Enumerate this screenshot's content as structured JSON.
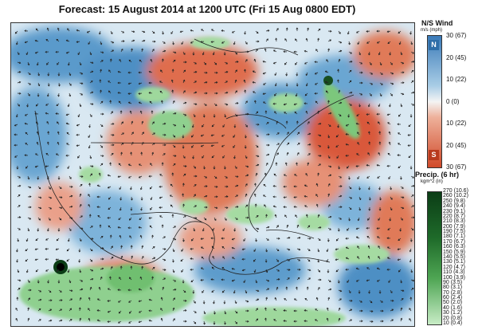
{
  "title": "Forecast: 15 August 2014 at 1200 UTC (Fri 15 Aug 0800 EDT)",
  "wind_legend": {
    "title": "N/S Wind",
    "units": "m/s (mph)",
    "north_label": "N",
    "south_label": "S",
    "ticks": [
      "30 (67)",
      "20 (45)",
      "10 (22)",
      "0 (0)",
      "10 (22)",
      "20 (45)",
      "30 (67)"
    ],
    "colors": {
      "north": "#3a7ab8",
      "mid": "#f4f4f4",
      "south": "#d04a2a"
    }
  },
  "precip_legend": {
    "title": "Precip. (6 hr)",
    "units": "kgm^2 (in)",
    "ticks": [
      "270 (10.6)",
      "260 (10.2)",
      "250 (9.8)",
      "240 (9.4)",
      "230 (9.1)",
      "220 (8.7)",
      "210 (8.3)",
      "200 (7.9)",
      "190 (7.5)",
      "180 (7.1)",
      "170 (6.7)",
      "160 (6.3)",
      "150 (5.9)",
      "140 (5.5)",
      "130 (5.1)",
      "120 (4.7)",
      "110 (4.3)",
      "100 (3.9)",
      "90 (3.5)",
      "80 (3.1)",
      "70 (2.8)",
      "60 (2.4)",
      "50 (2.0)",
      "40 (1.6)",
      "30 (1.2)",
      "20 (0.8)",
      "10 (0.4)"
    ],
    "colors": {
      "high": "#0b3d16",
      "low": "#c8ecc6"
    }
  }
}
